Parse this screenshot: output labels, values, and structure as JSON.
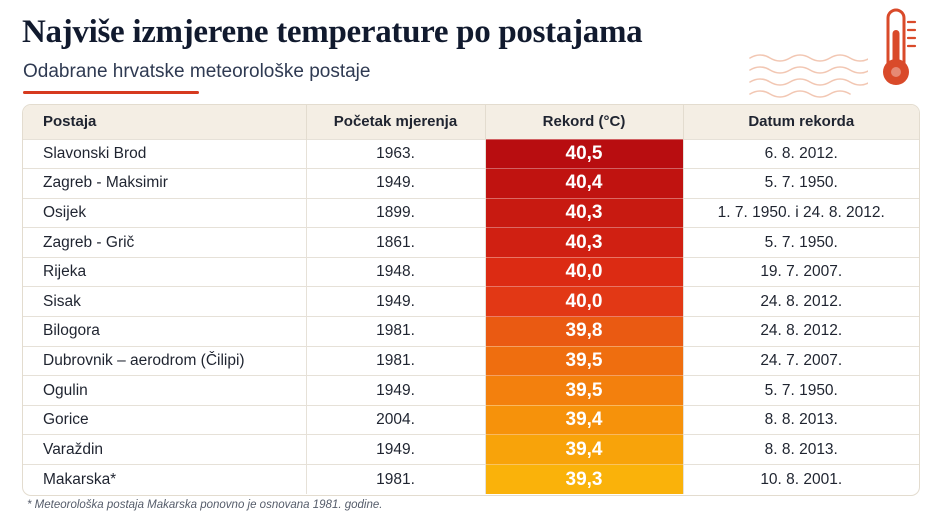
{
  "header": {
    "title": "Najviše izmjerene temperature po postajama",
    "subtitle": "Odabrane hrvatske meteorološke postaje",
    "accent_color": "#d63a1f",
    "icon": "thermometer-icon"
  },
  "table": {
    "columns": [
      "Postaja",
      "Početak mjerenja",
      "Rekord (°C)",
      "Datum rekorda"
    ],
    "rows": [
      {
        "station": "Slavonski Brod",
        "start": "1963.",
        "record": "40,5",
        "date": "6. 8. 2012.",
        "color": "#b80d10"
      },
      {
        "station": "Zagreb - Maksimir",
        "start": "1949.",
        "record": "40,4",
        "date": "5. 7. 1950.",
        "color": "#c01310"
      },
      {
        "station": "Osijek",
        "start": "1899.",
        "record": "40,3",
        "date": "1. 7. 1950. i 24. 8. 2012.",
        "color": "#c81a11"
      },
      {
        "station": "Zagreb - Grič",
        "start": "1861.",
        "record": "40,3",
        "date": "5. 7. 1950.",
        "color": "#d02012"
      },
      {
        "station": "Rijeka",
        "start": "1948.",
        "record": "40,0",
        "date": "19. 7. 2007.",
        "color": "#dc2b13"
      },
      {
        "station": "Sisak",
        "start": "1949.",
        "record": "40,0",
        "date": "24. 8. 2012.",
        "color": "#e23815"
      },
      {
        "station": "Bilogora",
        "start": "1981.",
        "record": "39,8",
        "date": "24. 8. 2012.",
        "color": "#ea5a12"
      },
      {
        "station": "Dubrovnik – aerodrom (Čilipi)",
        "start": "1981.",
        "record": "39,5",
        "date": "24. 7. 2007.",
        "color": "#ef6e0f"
      },
      {
        "station": "Ogulin",
        "start": "1949.",
        "record": "39,5",
        "date": "5. 7. 1950.",
        "color": "#f3800d"
      },
      {
        "station": "Gorice",
        "start": "2004.",
        "record": "39,4",
        "date": "8. 8. 2013.",
        "color": "#f6920b"
      },
      {
        "station": "Varaždin",
        "start": "1949.",
        "record": "39,4",
        "date": "8. 8. 2013.",
        "color": "#f8a30a"
      },
      {
        "station": "Makarska*",
        "start": "1981.",
        "record": "39,3",
        "date": "10. 8. 2001.",
        "color": "#fab20a"
      }
    ]
  },
  "footnote": "* Meteorološka postaja Makarska ponovno je osnovana 1981. godine."
}
